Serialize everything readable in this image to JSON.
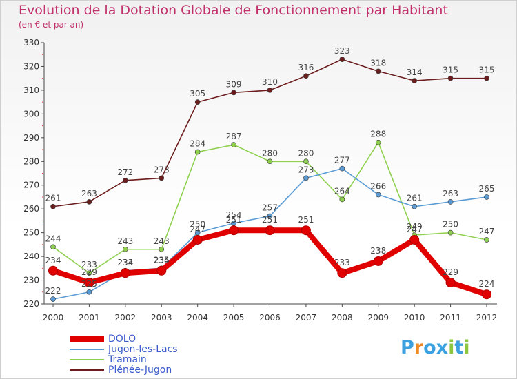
{
  "chart_data": {
    "type": "line",
    "title": "Evolution de la Dotation Globale de Fonctionnement par Habitant",
    "subtitle": "(en € et par an)",
    "x": [
      "2000",
      "2001",
      "2002",
      "2003",
      "2004",
      "2005",
      "2006",
      "2007",
      "2008",
      "2009",
      "2010",
      "2011",
      "2012"
    ],
    "ylim": [
      220,
      330
    ],
    "yticks": [
      220,
      230,
      240,
      250,
      260,
      270,
      280,
      290,
      300,
      310,
      320,
      330
    ],
    "grid": false,
    "legend_position": "bottom-left",
    "series": [
      {
        "name": "Plénée-Jugon",
        "color": "#6b1c1c",
        "values": [
          261,
          263,
          272,
          273,
          305,
          309,
          310,
          316,
          323,
          318,
          314,
          315,
          315
        ]
      },
      {
        "name": "Tramain",
        "color": "#8fd14f",
        "values": [
          244,
          233,
          243,
          243,
          284,
          287,
          280,
          280,
          264,
          288,
          249,
          250,
          247
        ]
      },
      {
        "name": "Jugon-les-Lacs",
        "color": "#5b9bd5",
        "values": [
          222,
          225,
          234,
          235,
          250,
          254,
          257,
          273,
          277,
          266,
          261,
          263,
          265
        ]
      },
      {
        "name": "DOLO",
        "color": "#e00000",
        "values": [
          234,
          229,
          233,
          234,
          247,
          251,
          251,
          251,
          233,
          238,
          247,
          229,
          224
        ]
      }
    ]
  },
  "legend": {
    "items": [
      {
        "label": "DOLO",
        "color": "#e00000"
      },
      {
        "label": "Jugon-les-Lacs",
        "color": "#5b9bd5"
      },
      {
        "label": "Tramain",
        "color": "#8fd14f"
      },
      {
        "label": "Plénée-Jugon",
        "color": "#6b1c1c"
      }
    ]
  },
  "logo": {
    "text": "Proxiti",
    "letters": [
      {
        "ch": "P",
        "color": "#3aa0e0"
      },
      {
        "ch": "r",
        "color": "#f08a24"
      },
      {
        "ch": "o",
        "color": "#3aa0e0"
      },
      {
        "ch": "x",
        "color": "#3aa0e0"
      },
      {
        "ch": "i",
        "color": "#8dc63f"
      },
      {
        "ch": "t",
        "color": "#3aa0e0"
      },
      {
        "ch": "i",
        "color": "#8dc63f"
      }
    ]
  }
}
